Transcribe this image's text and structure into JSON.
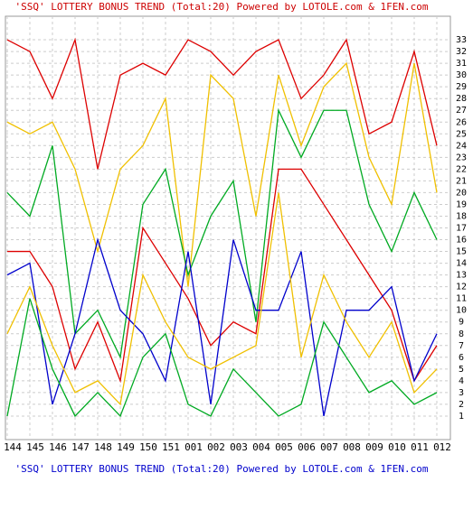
{
  "chart_data": {
    "type": "line",
    "title": "'SSQ' LOTTERY BONUS TREND (Total:20)  Powered by LOTOLE.com & 1FEN.com",
    "footer": "'SSQ' LOTTERY BONUS TREND (Total:20)  Powered by LOTOLE.com & 1FEN.com",
    "categories": [
      "144",
      "145",
      "146",
      "147",
      "148",
      "149",
      "150",
      "151",
      "001",
      "002",
      "003",
      "004",
      "005",
      "006",
      "007",
      "008",
      "009",
      "010",
      "011",
      "012"
    ],
    "series": [
      {
        "color": "#dd0000",
        "values": [
          33,
          32,
          28,
          33,
          22,
          30,
          31,
          30,
          33,
          32,
          30,
          32,
          33,
          28,
          30,
          33,
          25,
          26,
          32,
          24
        ]
      },
      {
        "color": "#f0c000",
        "values": [
          26,
          25,
          26,
          22,
          15,
          22,
          24,
          28,
          12,
          30,
          28,
          18,
          30,
          24,
          29,
          31,
          23,
          19,
          31,
          20
        ]
      },
      {
        "color": "#00aa22",
        "values": [
          20,
          18,
          24,
          8,
          10,
          6,
          19,
          22,
          13,
          18,
          21,
          9,
          27,
          23,
          27,
          27,
          19,
          15,
          20,
          16
        ]
      },
      {
        "color": "#dd0000",
        "values": [
          15,
          15,
          12,
          5,
          9,
          4,
          17,
          14,
          11,
          7,
          9,
          8,
          22,
          22,
          19,
          16,
          13,
          10,
          4,
          7
        ]
      },
      {
        "color": "#0000cc",
        "values": [
          13,
          14,
          2,
          8,
          16,
          10,
          8,
          4,
          15,
          2,
          16,
          10,
          10,
          15,
          1,
          10,
          10,
          12,
          4,
          8
        ]
      },
      {
        "color": "#f0c000",
        "values": [
          8,
          12,
          7,
          3,
          4,
          2,
          13,
          9,
          6,
          5,
          6,
          7,
          20,
          6,
          13,
          9,
          6,
          9,
          3,
          5
        ]
      },
      {
        "color": "#00aa22",
        "values": [
          1,
          11,
          5,
          1,
          3,
          1,
          6,
          8,
          2,
          1,
          5,
          3,
          1,
          2,
          9,
          6,
          3,
          4,
          2,
          3
        ]
      }
    ],
    "ylim": [
      -1,
      35
    ],
    "yticks": [
      1,
      2,
      3,
      4,
      5,
      6,
      7,
      8,
      9,
      10,
      11,
      12,
      13,
      14,
      15,
      16,
      17,
      18,
      19,
      20,
      21,
      22,
      23,
      24,
      25,
      26,
      27,
      28,
      29,
      30,
      31,
      32,
      33
    ],
    "grid": true
  }
}
